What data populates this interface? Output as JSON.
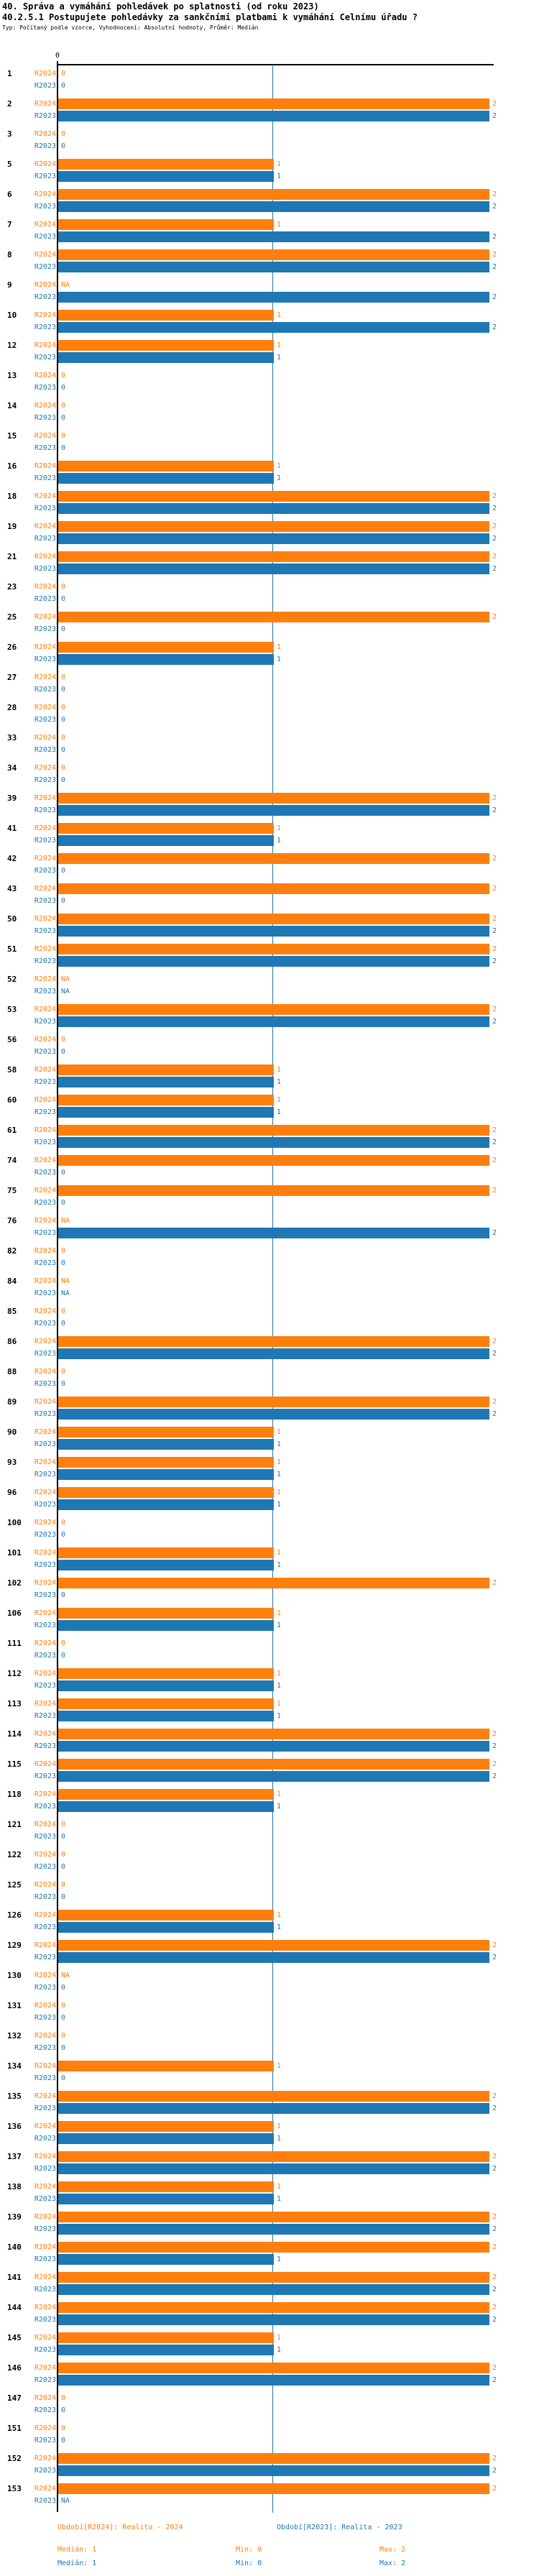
{
  "header": {
    "title": "40. Správa a vymáhání pohledávek po splatnosti (od roku 2023)",
    "subtitle": "40.2.5.1 Postupujete pohledávky za sankčními platbami k vymáhání Celnímu úřadu ?",
    "meta": "Typ: Počítaný podle vzorce, Vyhodnocení: Absolutní hodnoty, Průměr: Medián"
  },
  "axis": {
    "zero_label": "0"
  },
  "colors": {
    "r2024": "#ff7f0e",
    "r2023": "#1f77b4",
    "median_line": "#1f77b4",
    "axis": "#000000"
  },
  "chart_data": {
    "type": "bar",
    "orientation": "horizontal",
    "value_range": [
      0,
      2
    ],
    "median_line_value": 1,
    "na_label": "NA",
    "series": [
      {
        "key": "r2024",
        "label": "R2024",
        "color": "#ff7f0e"
      },
      {
        "key": "r2023",
        "label": "R2023",
        "color": "#1f77b4"
      }
    ],
    "groups": [
      {
        "id": "1",
        "r2024": 0,
        "r2023": 0
      },
      {
        "id": "2",
        "r2024": 2,
        "r2023": 2
      },
      {
        "id": "3",
        "r2024": 0,
        "r2023": 0
      },
      {
        "id": "5",
        "r2024": 1,
        "r2023": 1
      },
      {
        "id": "6",
        "r2024": 2,
        "r2023": 2
      },
      {
        "id": "7",
        "r2024": 1,
        "r2023": 2
      },
      {
        "id": "8",
        "r2024": 2,
        "r2023": 2
      },
      {
        "id": "9",
        "r2024": "NA",
        "r2023": 2
      },
      {
        "id": "10",
        "r2024": 1,
        "r2023": 2
      },
      {
        "id": "12",
        "r2024": 1,
        "r2023": 1
      },
      {
        "id": "13",
        "r2024": 0,
        "r2023": 0
      },
      {
        "id": "14",
        "r2024": 0,
        "r2023": 0
      },
      {
        "id": "15",
        "r2024": 0,
        "r2023": 0
      },
      {
        "id": "16",
        "r2024": 1,
        "r2023": 1
      },
      {
        "id": "18",
        "r2024": 2,
        "r2023": 2
      },
      {
        "id": "19",
        "r2024": 2,
        "r2023": 2
      },
      {
        "id": "21",
        "r2024": 2,
        "r2023": 2
      },
      {
        "id": "23",
        "r2024": 0,
        "r2023": 0
      },
      {
        "id": "25",
        "r2024": 2,
        "r2023": 0
      },
      {
        "id": "26",
        "r2024": 1,
        "r2023": 1
      },
      {
        "id": "27",
        "r2024": 0,
        "r2023": 0
      },
      {
        "id": "28",
        "r2024": 0,
        "r2023": 0
      },
      {
        "id": "33",
        "r2024": 0,
        "r2023": 0
      },
      {
        "id": "34",
        "r2024": 0,
        "r2023": 0
      },
      {
        "id": "39",
        "r2024": 2,
        "r2023": 2
      },
      {
        "id": "41",
        "r2024": 1,
        "r2023": 1
      },
      {
        "id": "42",
        "r2024": 2,
        "r2023": 0
      },
      {
        "id": "43",
        "r2024": 2,
        "r2023": 0
      },
      {
        "id": "50",
        "r2024": 2,
        "r2023": 2
      },
      {
        "id": "51",
        "r2024": 2,
        "r2023": 2
      },
      {
        "id": "52",
        "r2024": "NA",
        "r2023": "NA"
      },
      {
        "id": "53",
        "r2024": 2,
        "r2023": 2
      },
      {
        "id": "56",
        "r2024": 0,
        "r2023": 0
      },
      {
        "id": "58",
        "r2024": 1,
        "r2023": 1
      },
      {
        "id": "60",
        "r2024": 1,
        "r2023": 1
      },
      {
        "id": "61",
        "r2024": 2,
        "r2023": 2
      },
      {
        "id": "74",
        "r2024": 2,
        "r2023": 0
      },
      {
        "id": "75",
        "r2024": 2,
        "r2023": 0
      },
      {
        "id": "76",
        "r2024": "NA",
        "r2023": 2
      },
      {
        "id": "82",
        "r2024": 0,
        "r2023": 0
      },
      {
        "id": "84",
        "r2024": "NA",
        "r2023": "NA"
      },
      {
        "id": "85",
        "r2024": 0,
        "r2023": 0
      },
      {
        "id": "86",
        "r2024": 2,
        "r2023": 2
      },
      {
        "id": "88",
        "r2024": 0,
        "r2023": 0
      },
      {
        "id": "89",
        "r2024": 2,
        "r2023": 2
      },
      {
        "id": "90",
        "r2024": 1,
        "r2023": 1
      },
      {
        "id": "93",
        "r2024": 1,
        "r2023": 1
      },
      {
        "id": "96",
        "r2024": 1,
        "r2023": 1
      },
      {
        "id": "100",
        "r2024": 0,
        "r2023": 0
      },
      {
        "id": "101",
        "r2024": 1,
        "r2023": 1
      },
      {
        "id": "102",
        "r2024": 2,
        "r2023": 0
      },
      {
        "id": "106",
        "r2024": 1,
        "r2023": 1
      },
      {
        "id": "111",
        "r2024": 0,
        "r2023": 0
      },
      {
        "id": "112",
        "r2024": 1,
        "r2023": 1
      },
      {
        "id": "113",
        "r2024": 1,
        "r2023": 1
      },
      {
        "id": "114",
        "r2024": 2,
        "r2023": 2
      },
      {
        "id": "115",
        "r2024": 2,
        "r2023": 2
      },
      {
        "id": "118",
        "r2024": 1,
        "r2023": 1
      },
      {
        "id": "121",
        "r2024": 0,
        "r2023": 0
      },
      {
        "id": "122",
        "r2024": 0,
        "r2023": 0
      },
      {
        "id": "125",
        "r2024": 0,
        "r2023": 0
      },
      {
        "id": "126",
        "r2024": 1,
        "r2023": 1
      },
      {
        "id": "129",
        "r2024": 2,
        "r2023": 2
      },
      {
        "id": "130",
        "r2024": "NA",
        "r2023": 0
      },
      {
        "id": "131",
        "r2024": 0,
        "r2023": 0
      },
      {
        "id": "132",
        "r2024": 0,
        "r2023": 0
      },
      {
        "id": "134",
        "r2024": 1,
        "r2023": 0
      },
      {
        "id": "135",
        "r2024": 2,
        "r2023": 2
      },
      {
        "id": "136",
        "r2024": 1,
        "r2023": 1
      },
      {
        "id": "137",
        "r2024": 2,
        "r2023": 2
      },
      {
        "id": "138",
        "r2024": 1,
        "r2023": 1
      },
      {
        "id": "139",
        "r2024": 2,
        "r2023": 2
      },
      {
        "id": "140",
        "r2024": 2,
        "r2023": 1
      },
      {
        "id": "141",
        "r2024": 2,
        "r2023": 2
      },
      {
        "id": "144",
        "r2024": 2,
        "r2023": 2
      },
      {
        "id": "145",
        "r2024": 1,
        "r2023": 1
      },
      {
        "id": "146",
        "r2024": 2,
        "r2023": 2
      },
      {
        "id": "147",
        "r2024": 0,
        "r2023": 0
      },
      {
        "id": "151",
        "r2024": 0,
        "r2023": 0
      },
      {
        "id": "152",
        "r2024": 2,
        "r2023": 2
      },
      {
        "id": "153",
        "r2024": 2,
        "r2023": "NA"
      }
    ]
  },
  "footer": {
    "period_r2024": "Období[R2024]: Realita - 2024",
    "period_r2023": "Období[R2023]: Realita - 2023",
    "r2024_median": "Medián: 1",
    "r2024_min": "Min: 0",
    "r2024_max": "Max: 2",
    "r2023_median": "Medián: 1",
    "r2023_min": "Min: 0",
    "r2023_max": "Max: 2"
  }
}
